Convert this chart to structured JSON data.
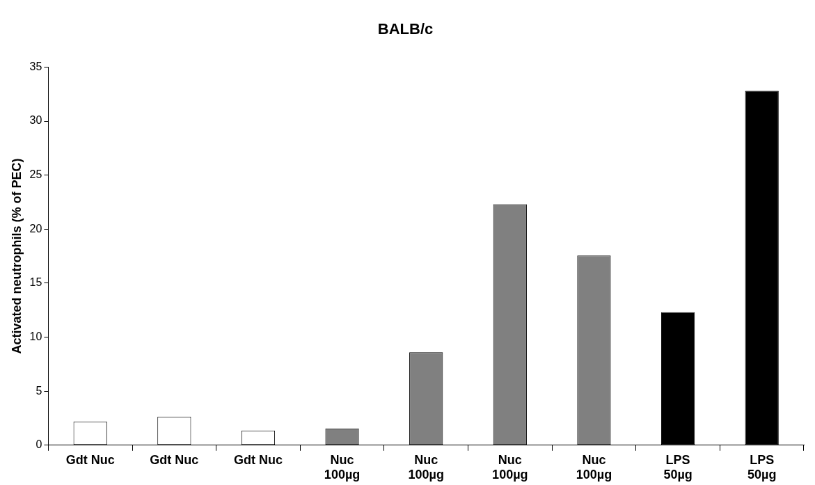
{
  "chart_data": {
    "type": "bar",
    "title": "BALB/c",
    "ylabel": "Activated neutrophils (% of PEC)",
    "categories": [
      "Gdt Nuc",
      "Gdt Nuc",
      "Gdt Nuc",
      "Nuc 100µg",
      "Nuc 100µg",
      "Nuc 100µg",
      "Nuc 100µg",
      "LPS 50µg",
      "LPS 50µg"
    ],
    "values": [
      2.2,
      2.65,
      1.35,
      1.55,
      8.6,
      22.3,
      17.55,
      12.3,
      32.8
    ],
    "colors": [
      "#ffffff",
      "#ffffff",
      "#ffffff",
      "#808080",
      "#808080",
      "#808080",
      "#808080",
      "#000000",
      "#000000"
    ],
    "ylim": [
      0,
      35
    ],
    "yticks": [
      0,
      5,
      10,
      15,
      20,
      25,
      30,
      35
    ],
    "grid": false,
    "legend": false
  }
}
